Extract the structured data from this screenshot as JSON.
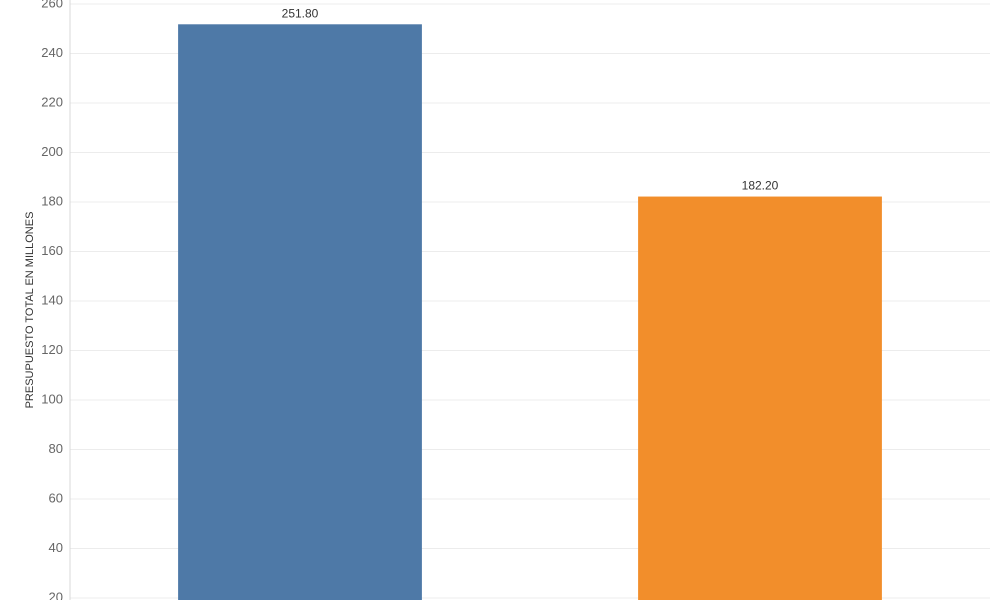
{
  "chart_data": {
    "type": "bar",
    "y_label": "PRESUPUESTO TOTAL  EN MILLONES",
    "categories": [
      null,
      null
    ],
    "values": [
      251.8,
      182.2
    ],
    "value_labels": [
      "251.80",
      "182.20"
    ],
    "colors": [
      "#4e79a7",
      "#f28e2b"
    ],
    "ylim": [
      20,
      260
    ],
    "yticks": [
      20,
      40,
      60,
      80,
      100,
      120,
      140,
      160,
      180,
      200,
      220,
      240,
      260
    ],
    "grid": true
  }
}
